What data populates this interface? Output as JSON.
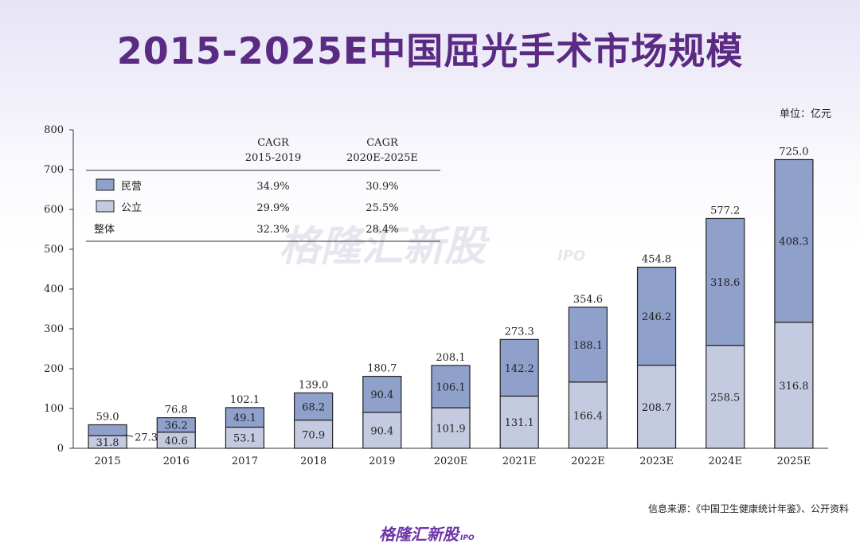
{
  "title": "2015-2025E中国屈光手术市场规模",
  "unit_label": "单位：亿元",
  "source": "信息来源：《中国卫生健康统计年鉴》、公开资料",
  "logo": {
    "text": "格隆汇新股",
    "suffix": "IPO"
  },
  "watermark": "格隆汇新股 IPO",
  "colors": {
    "private": "#8fa0cb",
    "public": "#c4cbe0",
    "title": "#5b2a82"
  },
  "chart_data": {
    "type": "bar",
    "stacked": true,
    "categories": [
      "2015",
      "2016",
      "2017",
      "2018",
      "2019",
      "2020E",
      "2021E",
      "2022E",
      "2023E",
      "2024E",
      "2025E"
    ],
    "series": [
      {
        "name": "公立",
        "values": [
          31.8,
          40.6,
          53.1,
          70.9,
          90.4,
          101.9,
          131.1,
          166.4,
          208.7,
          258.5,
          316.8
        ]
      },
      {
        "name": "民营",
        "values": [
          27.3,
          36.2,
          49.1,
          68.2,
          90.4,
          106.1,
          142.2,
          188.1,
          246.2,
          318.6,
          408.3
        ]
      }
    ],
    "totals": [
      59.0,
      76.8,
      102.1,
      139.0,
      180.7,
      208.1,
      273.3,
      354.6,
      454.8,
      577.2,
      725.0
    ],
    "total_labels": [
      "59.0",
      "76.8",
      "102.1",
      "139.0",
      "180.7",
      "208.1",
      "273.3",
      "354.6",
      "454.8",
      "577.2",
      "725.0"
    ],
    "public_labels": [
      "31.8",
      "40.6",
      "53.1",
      "70.9",
      "90.4",
      "101.9",
      "131.1",
      "166.4",
      "208.7",
      "258.5",
      "316.8"
    ],
    "private_labels": [
      "27.3",
      "36.2",
      "49.1",
      "68.2",
      "90.4",
      "106.1",
      "142.2",
      "188.1",
      "246.2",
      "318.6",
      "408.3"
    ],
    "yticks": [
      0,
      100,
      200,
      300,
      400,
      500,
      600,
      700,
      800
    ],
    "ylim": [
      0,
      800
    ],
    "xlabel": "",
    "ylabel": "",
    "legend_position": "top-left",
    "cagr_table": {
      "headers": [
        "CAGR\n2015-2019",
        "CAGR\n2020E-2025E"
      ],
      "header_lines": [
        [
          "CAGR",
          "2015-2019"
        ],
        [
          "CAGR",
          "2020E-2025E"
        ]
      ],
      "rows": [
        {
          "label": "民营",
          "values": [
            "34.9%",
            "30.9%"
          ]
        },
        {
          "label": "公立",
          "values": [
            "29.9%",
            "25.5%"
          ]
        },
        {
          "label": "整体",
          "values": [
            "32.3%",
            "28.4%"
          ]
        }
      ]
    }
  }
}
